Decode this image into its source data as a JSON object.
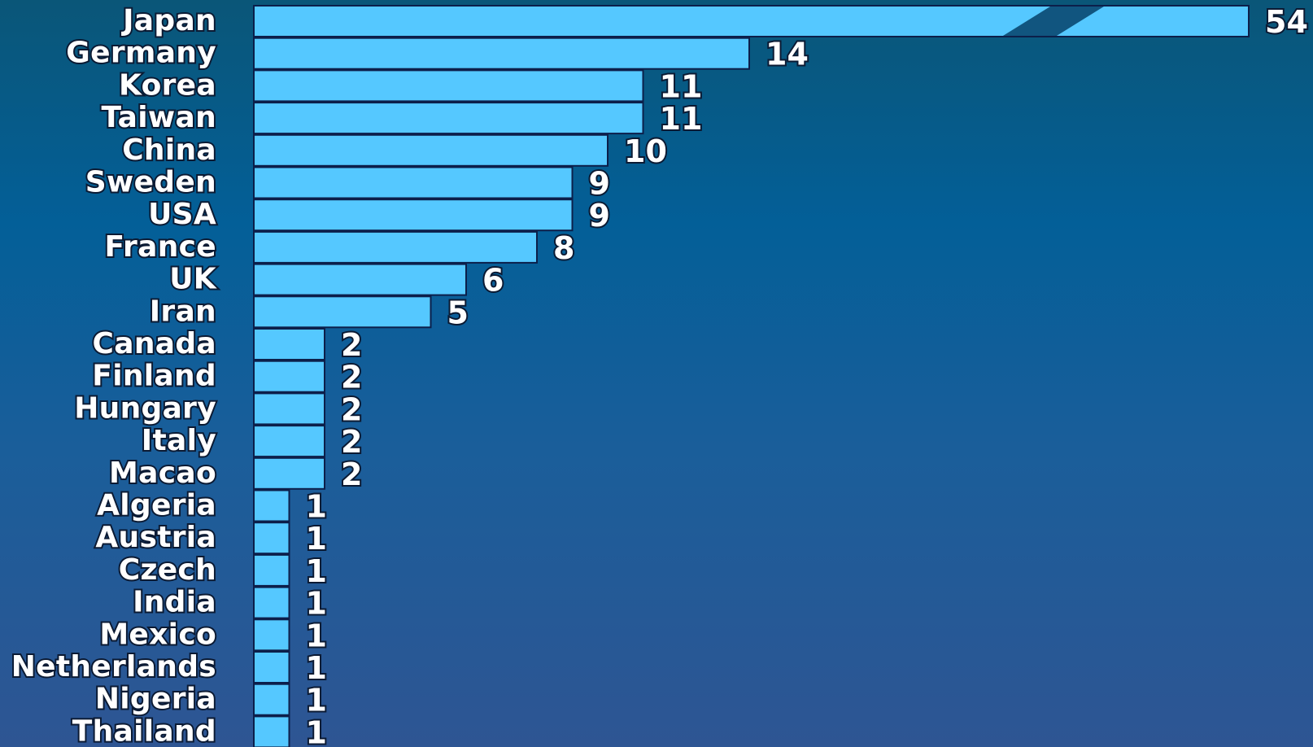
{
  "chart_data": {
    "type": "bar",
    "orientation": "horizontal",
    "categories": [
      "Japan",
      "Germany",
      "Korea",
      "Taiwan",
      "China",
      "Sweden",
      "USA",
      "France",
      "UK",
      "Iran",
      "Canada",
      "Finland",
      "Hungary",
      "Italy",
      "Macao",
      "Algeria",
      "Austria",
      "Czech",
      "India",
      "Mexico",
      "Netherlands",
      "Nigeria",
      "Thailand"
    ],
    "values": [
      54,
      14,
      11,
      11,
      10,
      9,
      9,
      8,
      6,
      5,
      2,
      2,
      2,
      2,
      2,
      1,
      1,
      1,
      1,
      1,
      1,
      1,
      1
    ],
    "value_labels": [
      "54",
      "14",
      "11",
      "11",
      "10",
      "9",
      "9",
      "8",
      "6",
      "5",
      "2",
      "2",
      "2",
      "2",
      "2",
      "1",
      "1",
      "1",
      "1",
      "1",
      "1",
      "1",
      "1"
    ],
    "axis_break": {
      "category": "Japan",
      "drawn_as": "broken bar"
    },
    "bar_color": "#55c8ff",
    "bar_outline_color": "#0c1f4a",
    "label_color": "#ffffff",
    "grid": false,
    "legend": "none",
    "title": "",
    "xlabel": "",
    "ylabel": ""
  }
}
